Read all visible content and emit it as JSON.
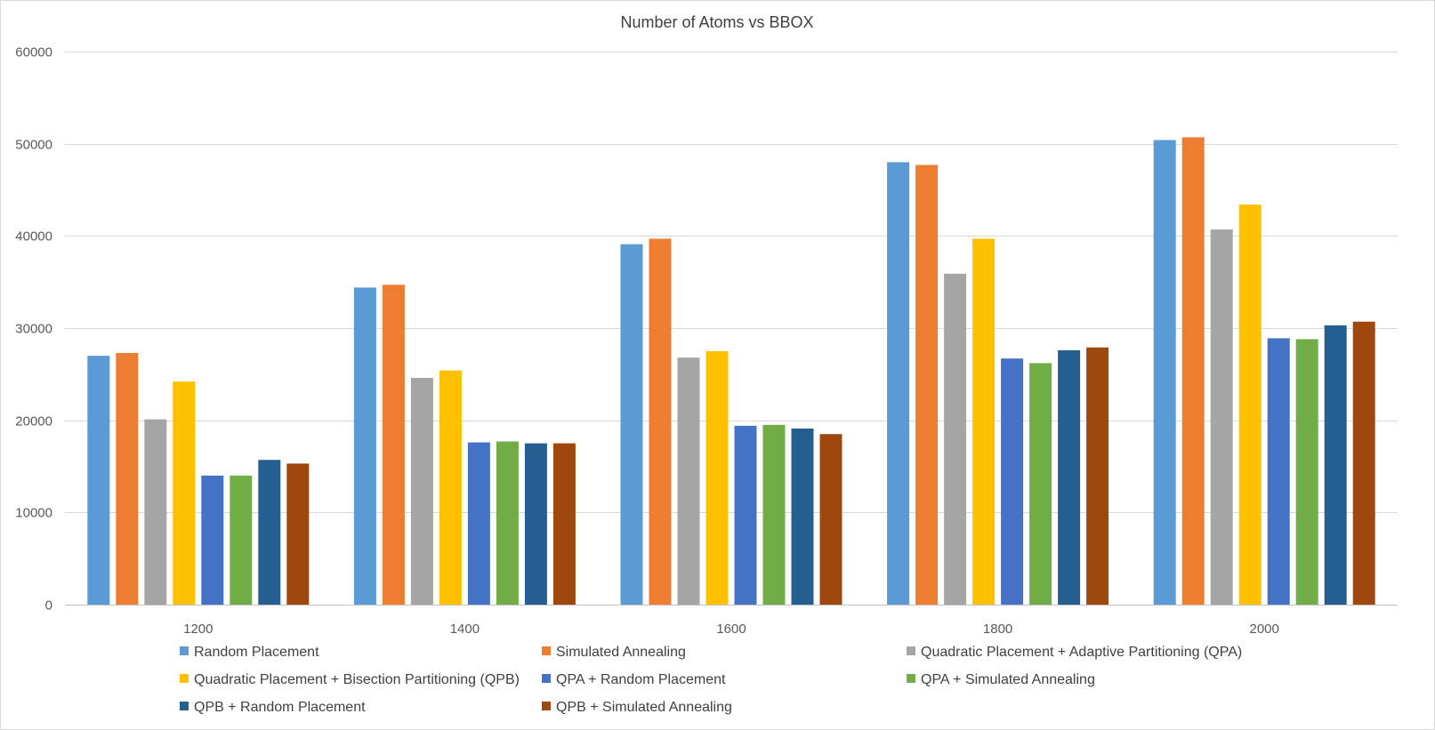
{
  "chart_data": {
    "type": "bar",
    "title": "Number of Atoms vs BBOX",
    "xlabel": "",
    "ylabel": "",
    "categories": [
      "1200",
      "1400",
      "1600",
      "1800",
      "2000"
    ],
    "ylim": [
      0,
      60000
    ],
    "yticks": [
      "0",
      "10000",
      "20000",
      "30000",
      "40000",
      "50000",
      "60000"
    ],
    "grid": true,
    "legend_position": "bottom",
    "series": [
      {
        "name": "Random Placement",
        "color": "#5b9bd5",
        "values": [
          27000,
          34400,
          39100,
          48000,
          50400
        ]
      },
      {
        "name": "Simulated Annealing",
        "color": "#ed7d31",
        "values": [
          27300,
          34700,
          39700,
          47700,
          50700
        ]
      },
      {
        "name": "Quadratic Placement + Adaptive Partitioning (QPA)",
        "color": "#a5a5a5",
        "values": [
          20100,
          24600,
          26800,
          35900,
          40700
        ]
      },
      {
        "name": "Quadratic Placement + Bisection Partitioning (QPB)",
        "color": "#ffc000",
        "values": [
          24200,
          25400,
          27500,
          39700,
          43400
        ]
      },
      {
        "name": "QPA + Random Placement",
        "color": "#4472c4",
        "values": [
          14000,
          17600,
          19400,
          26700,
          28900
        ]
      },
      {
        "name": "QPA + Simulated Annealing",
        "color": "#70ad47",
        "values": [
          14000,
          17700,
          19500,
          26200,
          28800
        ]
      },
      {
        "name": "QPB + Random Placement",
        "color": "#255e91",
        "values": [
          15700,
          17500,
          19100,
          27600,
          30300
        ]
      },
      {
        "name": "QPB + Simulated Annealing",
        "color": "#9e480e",
        "values": [
          15300,
          17500,
          18500,
          27900,
          30700
        ]
      }
    ]
  }
}
